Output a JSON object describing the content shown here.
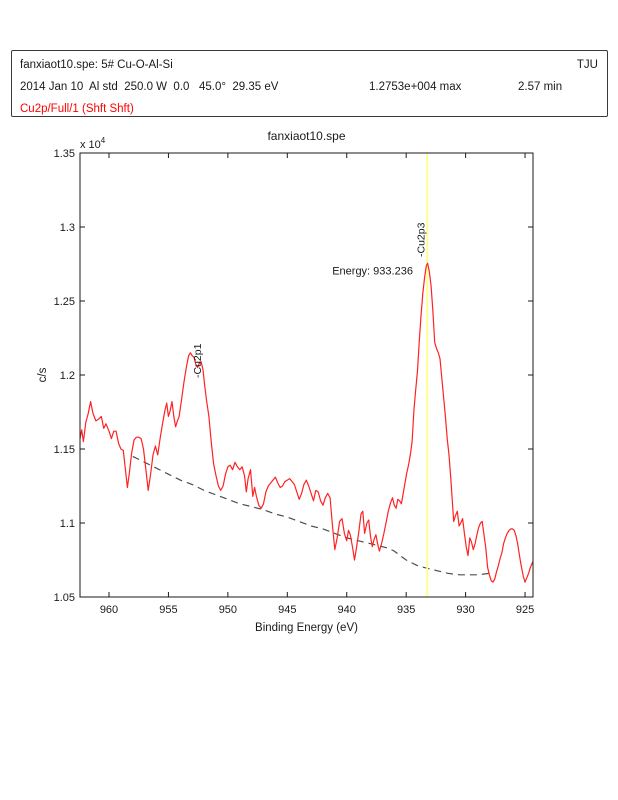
{
  "header": {
    "line1_left": "fanxiaot10.spe: 5# Cu-O-Al-Si",
    "line1_right": "TJU",
    "line2_left": "2014 Jan 10  Al std  250.0 W  0.0   45.0°  29.35 eV",
    "line2_max": "1.2753e+004 max",
    "line2_min": "2.57 min",
    "line3": "Cu2p/Full/1 (Shft Shft)",
    "line3_color": "#ff0000"
  },
  "chart_data": {
    "type": "line",
    "title": "fanxiaot10.spe",
    "xlabel": "Binding Energy (eV)",
    "ylabel": "c/s",
    "y_multiplier": "x 10",
    "y_multiplier_exp": "4",
    "x_axis": {
      "max": 962.44,
      "min": 924.33,
      "reversed": true,
      "ticks": [
        960,
        955,
        950,
        945,
        940,
        935,
        930,
        925
      ],
      "tick_labels": [
        "960",
        "955",
        "950",
        "945",
        "940",
        "935",
        "930",
        "925"
      ]
    },
    "y_axis": {
      "min": 1.05,
      "max": 1.35,
      "ticks": [
        1.35,
        1.3,
        1.25,
        1.2,
        1.15,
        1.1,
        1.05
      ],
      "tick_labels": [
        "1.35",
        "1.3",
        "1.25",
        "1.2",
        "1.15",
        "1.1",
        "1.05"
      ]
    },
    "marker": {
      "energy": 933.236,
      "color": "#ffff8f"
    },
    "annotation": {
      "text": "Energy: 933.236",
      "x": 934.43,
      "y": 1.2705,
      "color": "#3c3c3c"
    },
    "peak_labels": [
      {
        "text": "-Cu2p1",
        "x": 952.26,
        "y": 1.198
      },
      {
        "text": "-Cu2p3",
        "x": 933.46,
        "y": 1.2797
      }
    ],
    "series": [
      {
        "name": "spectrum",
        "color": "#ff2222",
        "width": 1.2,
        "dash": null,
        "points": [
          [
            962.44,
            1.157
          ],
          [
            962.3,
            1.163
          ],
          [
            962.15,
            1.155
          ],
          [
            961.95,
            1.168
          ],
          [
            961.75,
            1.174
          ],
          [
            961.55,
            1.182
          ],
          [
            961.35,
            1.174
          ],
          [
            961.1,
            1.169
          ],
          [
            960.9,
            1.17
          ],
          [
            960.65,
            1.172
          ],
          [
            960.45,
            1.164
          ],
          [
            960.25,
            1.167
          ],
          [
            960.0,
            1.162
          ],
          [
            959.8,
            1.157
          ],
          [
            959.6,
            1.162
          ],
          [
            959.4,
            1.162
          ],
          [
            959.2,
            1.154
          ],
          [
            959.0,
            1.15
          ],
          [
            958.8,
            1.149
          ],
          [
            958.6,
            1.135
          ],
          [
            958.45,
            1.124
          ],
          [
            958.3,
            1.133
          ],
          [
            958.1,
            1.147
          ],
          [
            957.9,
            1.156
          ],
          [
            957.7,
            1.158
          ],
          [
            957.5,
            1.158
          ],
          [
            957.3,
            1.157
          ],
          [
            957.1,
            1.15
          ],
          [
            956.9,
            1.136
          ],
          [
            956.7,
            1.122
          ],
          [
            956.5,
            1.133
          ],
          [
            956.3,
            1.146
          ],
          [
            956.1,
            1.152
          ],
          [
            955.9,
            1.146
          ],
          [
            955.7,
            1.157
          ],
          [
            955.5,
            1.167
          ],
          [
            955.3,
            1.176
          ],
          [
            955.15,
            1.181
          ],
          [
            955.0,
            1.172
          ],
          [
            954.85,
            1.176
          ],
          [
            954.7,
            1.182
          ],
          [
            954.55,
            1.172
          ],
          [
            954.4,
            1.165
          ],
          [
            954.25,
            1.169
          ],
          [
            954.1,
            1.172
          ],
          [
            953.9,
            1.183
          ],
          [
            953.7,
            1.195
          ],
          [
            953.5,
            1.205
          ],
          [
            953.3,
            1.213
          ],
          [
            953.15,
            1.215
          ],
          [
            953.0,
            1.213
          ],
          [
            952.85,
            1.212
          ],
          [
            952.7,
            1.207
          ],
          [
            952.55,
            1.205
          ],
          [
            952.4,
            1.208
          ],
          [
            952.25,
            1.209
          ],
          [
            952.1,
            1.204
          ],
          [
            951.95,
            1.193
          ],
          [
            951.8,
            1.183
          ],
          [
            951.6,
            1.172
          ],
          [
            951.4,
            1.155
          ],
          [
            951.2,
            1.14
          ],
          [
            951.0,
            1.132
          ],
          [
            950.8,
            1.125
          ],
          [
            950.6,
            1.122
          ],
          [
            950.4,
            1.125
          ],
          [
            950.2,
            1.133
          ],
          [
            950.0,
            1.138
          ],
          [
            949.8,
            1.139
          ],
          [
            949.6,
            1.136
          ],
          [
            949.4,
            1.141
          ],
          [
            949.2,
            1.138
          ],
          [
            949.0,
            1.136
          ],
          [
            948.8,
            1.138
          ],
          [
            948.6,
            1.132
          ],
          [
            948.45,
            1.121
          ],
          [
            948.3,
            1.13
          ],
          [
            948.1,
            1.136
          ],
          [
            947.9,
            1.118
          ],
          [
            947.75,
            1.124
          ],
          [
            947.6,
            1.118
          ],
          [
            947.4,
            1.112
          ],
          [
            947.2,
            1.11
          ],
          [
            947.0,
            1.113
          ],
          [
            946.8,
            1.121
          ],
          [
            946.6,
            1.125
          ],
          [
            946.4,
            1.127
          ],
          [
            946.2,
            1.129
          ],
          [
            946.0,
            1.131
          ],
          [
            945.8,
            1.127
          ],
          [
            945.6,
            1.124
          ],
          [
            945.4,
            1.125
          ],
          [
            945.2,
            1.128
          ],
          [
            945.0,
            1.129
          ],
          [
            944.8,
            1.13
          ],
          [
            944.6,
            1.128
          ],
          [
            944.4,
            1.126
          ],
          [
            944.2,
            1.121
          ],
          [
            944.0,
            1.116
          ],
          [
            943.8,
            1.12
          ],
          [
            943.6,
            1.126
          ],
          [
            943.4,
            1.129
          ],
          [
            943.2,
            1.125
          ],
          [
            943.0,
            1.12
          ],
          [
            942.8,
            1.115
          ],
          [
            942.6,
            1.122
          ],
          [
            942.4,
            1.121
          ],
          [
            942.2,
            1.115
          ],
          [
            942.0,
            1.112
          ],
          [
            941.8,
            1.117
          ],
          [
            941.6,
            1.12
          ],
          [
            941.4,
            1.117
          ],
          [
            941.2,
            1.098
          ],
          [
            941.0,
            1.082
          ],
          [
            940.8,
            1.09
          ],
          [
            940.6,
            1.101
          ],
          [
            940.4,
            1.103
          ],
          [
            940.2,
            1.093
          ],
          [
            940.0,
            1.088
          ],
          [
            939.85,
            1.095
          ],
          [
            939.7,
            1.092
          ],
          [
            939.5,
            1.083
          ],
          [
            939.35,
            1.075
          ],
          [
            939.2,
            1.082
          ],
          [
            939.0,
            1.093
          ],
          [
            938.8,
            1.106
          ],
          [
            938.65,
            1.108
          ],
          [
            938.5,
            1.093
          ],
          [
            938.3,
            1.1
          ],
          [
            938.15,
            1.102
          ],
          [
            938.0,
            1.091
          ],
          [
            937.85,
            1.084
          ],
          [
            937.7,
            1.089
          ],
          [
            937.55,
            1.092
          ],
          [
            937.4,
            1.086
          ],
          [
            937.25,
            1.081
          ],
          [
            937.1,
            1.085
          ],
          [
            936.9,
            1.092
          ],
          [
            936.7,
            1.1
          ],
          [
            936.5,
            1.108
          ],
          [
            936.3,
            1.114
          ],
          [
            936.15,
            1.117
          ],
          [
            936.0,
            1.112
          ],
          [
            935.85,
            1.11
          ],
          [
            935.7,
            1.116
          ],
          [
            935.55,
            1.115
          ],
          [
            935.4,
            1.113
          ],
          [
            935.25,
            1.12
          ],
          [
            935.1,
            1.127
          ],
          [
            934.95,
            1.134
          ],
          [
            934.8,
            1.139
          ],
          [
            934.65,
            1.146
          ],
          [
            934.5,
            1.155
          ],
          [
            934.35,
            1.176
          ],
          [
            934.2,
            1.19
          ],
          [
            934.05,
            1.203
          ],
          [
            933.9,
            1.222
          ],
          [
            933.75,
            1.24
          ],
          [
            933.6,
            1.255
          ],
          [
            933.45,
            1.266
          ],
          [
            933.3,
            1.274
          ],
          [
            933.2,
            1.2755
          ],
          [
            933.05,
            1.27
          ],
          [
            932.9,
            1.26
          ],
          [
            932.75,
            1.243
          ],
          [
            932.6,
            1.222
          ],
          [
            932.45,
            1.218
          ],
          [
            932.3,
            1.215
          ],
          [
            932.15,
            1.211
          ],
          [
            932.0,
            1.198
          ],
          [
            931.85,
            1.185
          ],
          [
            931.7,
            1.172
          ],
          [
            931.55,
            1.157
          ],
          [
            931.4,
            1.146
          ],
          [
            931.25,
            1.131
          ],
          [
            931.1,
            1.113
          ],
          [
            931.0,
            1.101
          ],
          [
            930.85,
            1.105
          ],
          [
            930.7,
            1.108
          ],
          [
            930.55,
            1.098
          ],
          [
            930.4,
            1.1
          ],
          [
            930.25,
            1.103
          ],
          [
            930.1,
            1.093
          ],
          [
            929.95,
            1.084
          ],
          [
            929.8,
            1.078
          ],
          [
            929.65,
            1.09
          ],
          [
            929.5,
            1.087
          ],
          [
            929.35,
            1.082
          ],
          [
            929.2,
            1.086
          ],
          [
            929.05,
            1.092
          ],
          [
            928.9,
            1.097
          ],
          [
            928.75,
            1.1
          ],
          [
            928.6,
            1.101
          ],
          [
            928.45,
            1.092
          ],
          [
            928.3,
            1.083
          ],
          [
            928.15,
            1.07
          ],
          [
            928.0,
            1.065
          ],
          [
            927.85,
            1.061
          ],
          [
            927.7,
            1.06
          ],
          [
            927.55,
            1.062
          ],
          [
            927.4,
            1.067
          ],
          [
            927.25,
            1.071
          ],
          [
            927.1,
            1.076
          ],
          [
            926.95,
            1.08
          ],
          [
            926.8,
            1.086
          ],
          [
            926.65,
            1.09
          ],
          [
            926.5,
            1.093
          ],
          [
            926.35,
            1.095
          ],
          [
            926.2,
            1.096
          ],
          [
            926.05,
            1.096
          ],
          [
            925.9,
            1.095
          ],
          [
            925.75,
            1.091
          ],
          [
            925.6,
            1.085
          ],
          [
            925.45,
            1.077
          ],
          [
            925.3,
            1.07
          ],
          [
            925.15,
            1.064
          ],
          [
            925.0,
            1.06
          ],
          [
            924.85,
            1.063
          ],
          [
            924.7,
            1.066
          ],
          [
            924.55,
            1.07
          ],
          [
            924.4,
            1.073
          ],
          [
            924.33,
            1.074
          ]
        ]
      },
      {
        "name": "background",
        "color": "#4d4d4d",
        "width": 1.2,
        "dash": "7 5",
        "points": [
          [
            958.0,
            1.145
          ],
          [
            957.0,
            1.141
          ],
          [
            956.0,
            1.137
          ],
          [
            955.0,
            1.133
          ],
          [
            954.0,
            1.129
          ],
          [
            953.0,
            1.126
          ],
          [
            952.0,
            1.122
          ],
          [
            951.0,
            1.119
          ],
          [
            950.0,
            1.116
          ],
          [
            949.0,
            1.113
          ],
          [
            948.0,
            1.111
          ],
          [
            947.0,
            1.109
          ],
          [
            946.0,
            1.106
          ],
          [
            945.0,
            1.104
          ],
          [
            944.0,
            1.101
          ],
          [
            943.0,
            1.098
          ],
          [
            942.0,
            1.096
          ],
          [
            941.0,
            1.093
          ],
          [
            940.0,
            1.09
          ],
          [
            939.0,
            1.088
          ],
          [
            938.0,
            1.086
          ],
          [
            937.0,
            1.084
          ],
          [
            936.5,
            1.083
          ],
          [
            936.0,
            1.081
          ],
          [
            935.5,
            1.078
          ],
          [
            935.0,
            1.075
          ],
          [
            934.5,
            1.073
          ],
          [
            934.0,
            1.071
          ],
          [
            933.5,
            1.07
          ],
          [
            933.0,
            1.069
          ],
          [
            932.5,
            1.068
          ],
          [
            932.0,
            1.067
          ],
          [
            931.5,
            1.066
          ],
          [
            931.0,
            1.0655
          ],
          [
            930.5,
            1.065
          ],
          [
            930.0,
            1.065
          ],
          [
            929.5,
            1.065
          ],
          [
            929.0,
            1.065
          ],
          [
            928.5,
            1.0655
          ],
          [
            928.0,
            1.066
          ],
          [
            927.9,
            1.066
          ]
        ]
      }
    ]
  }
}
